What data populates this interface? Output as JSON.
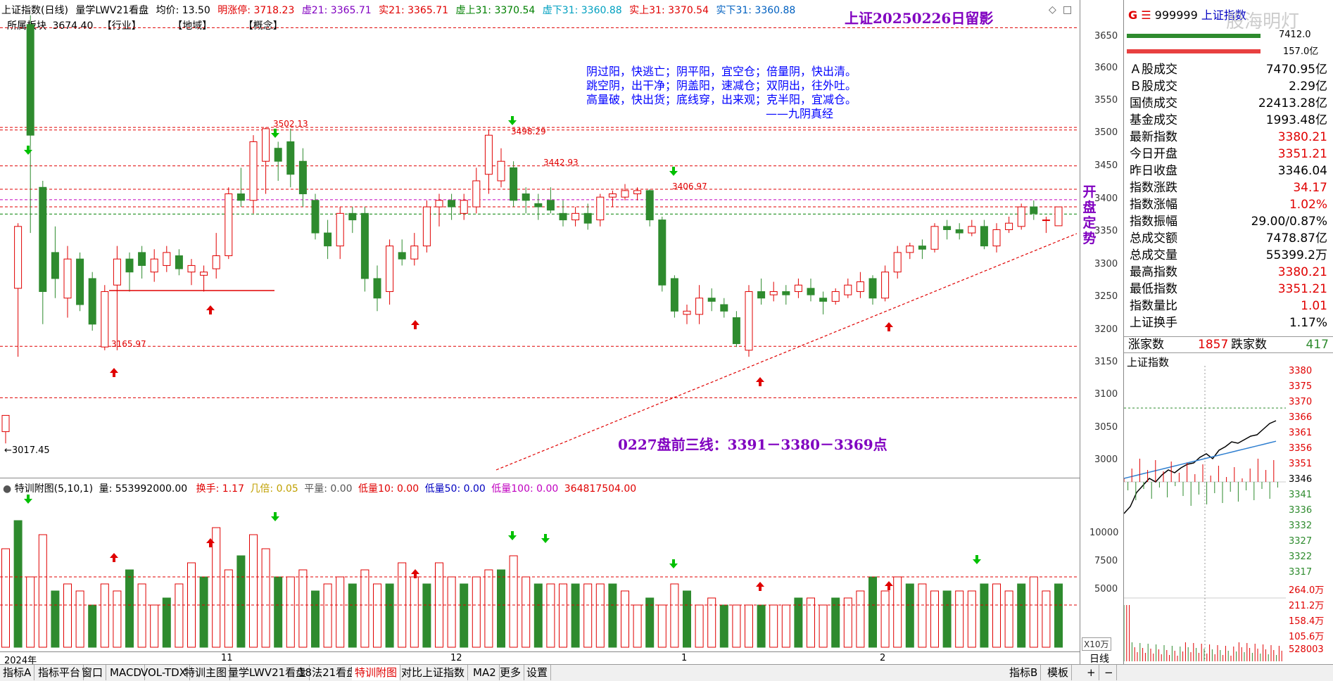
{
  "header": {
    "index_name": "上证指数(日线)",
    "indicator": "量学LWV21看盘",
    "avg_label": "均价: 13.50",
    "limit_up": "明涨停: 3718.23",
    "xu21": "虚21: 3365.71",
    "shi21": "实21: 3365.71",
    "xushang31": "虚上31: 3370.54",
    "xuxia31": "虚下31: 3360.88",
    "shishang31": "实上31: 3370.54",
    "shixia31": "实下31: 3360.88",
    "line2_a": "所属板块",
    "line2_b": "【行业】",
    "line2_c": "【地域】",
    "line2_d": "【概念】",
    "y_top_text": "3674.40"
  },
  "title_right": "上证20250226日留影",
  "poem": [
    "阴过阳，快逃亡；阴平阳，宜空仓；倍量阴，快出清。",
    "跳空阴，出干净；阴盖阳，速减仓；双阴出，往外吐。",
    "高量破，快出货；底线穿，出来观；克半阳，宜减仓。",
    "——九阴真经"
  ],
  "forecast_text": "0227盘前三线：3391－3380－3369点",
  "side_text": [
    "开",
    "盘",
    "定",
    "势"
  ],
  "price_labels": {
    "p3502": "3502.13",
    "p3498": "3498.29",
    "p3442": "3442.93",
    "p3406": "3406.97",
    "p3165": "3165.97",
    "p3017": "←3017.45"
  },
  "y_axis_main": [
    "3650",
    "3600",
    "3550",
    "3500",
    "3450",
    "3400",
    "3350",
    "3300",
    "3250",
    "3200",
    "3150",
    "3100",
    "3050",
    "3000"
  ],
  "sub_header": {
    "name": "特训附图(5,10,1)",
    "vol": "量: 553992000.00",
    "huanshou": "换手: 1.17",
    "beiji": "几倍: 0.05",
    "pingliang": "平量: 0.00",
    "diliang10": "低量10: 0.00",
    "diliang50": "低量50: 0.00",
    "diliang100": "低量100: 0.00",
    "tail": "364817504.00"
  },
  "y_axis_sub": [
    "10000",
    "7500",
    "5000"
  ],
  "x_unit": "X10万",
  "date_labels": [
    "2024年",
    "11",
    "12",
    "1",
    "2"
  ],
  "period": "日线",
  "right_panel": {
    "code": "999999",
    "name": "上证指数",
    "watermark": "股海明灯",
    "top_vals": [
      "7412.0",
      "157.0亿"
    ],
    "rows": [
      {
        "label": "Ａ股成交",
        "value": "7470.95亿",
        "color": "#000"
      },
      {
        "label": "Ｂ股成交",
        "value": "2.29亿",
        "color": "#000"
      },
      {
        "label": "国债成交",
        "value": "22413.28亿",
        "color": "#000"
      },
      {
        "label": "基金成交",
        "value": "1993.48亿",
        "color": "#000"
      },
      {
        "label": "最新指数",
        "value": "3380.21",
        "color": "#e00000"
      },
      {
        "label": "今日开盘",
        "value": "3351.21",
        "color": "#e00000"
      },
      {
        "label": "昨日收盘",
        "value": "3346.04",
        "color": "#000"
      },
      {
        "label": "指数涨跌",
        "value": "34.17",
        "color": "#e00000"
      },
      {
        "label": "指数涨幅",
        "value": "1.02%",
        "color": "#e00000"
      },
      {
        "label": "指数振幅",
        "value": "29.00/0.87%",
        "color": "#000"
      },
      {
        "label": "总成交额",
        "value": "7478.87亿",
        "color": "#000"
      },
      {
        "label": "总成交量",
        "value": "55399.2万",
        "color": "#000"
      },
      {
        "label": "最高指数",
        "value": "3380.21",
        "color": "#e00000"
      },
      {
        "label": "最低指数",
        "value": "3351.21",
        "color": "#e00000"
      },
      {
        "label": "指数量比",
        "value": "1.01",
        "color": "#e00000"
      },
      {
        "label": "上证换手",
        "value": "1.17%",
        "color": "#000"
      }
    ],
    "rise_label": "涨家数",
    "rise_val": "1857",
    "fall_label": "跌家数",
    "fall_val": "417",
    "mini_title": "上证指数",
    "mini_axis": [
      "3380",
      "3375",
      "3370",
      "3366",
      "3361",
      "3356",
      "3351",
      "3346",
      "3341",
      "3336",
      "3332",
      "3327",
      "3322",
      "3317",
      "264.0万",
      "211.2万",
      "158.4万",
      "105.6万",
      "528003"
    ]
  },
  "tabs": [
    "指标A",
    "指标平台",
    "窗口",
    "MACD",
    "VOL-TDX",
    "特训主图",
    "量学LWV21看盘",
    "18法21看盘",
    "特训附图",
    "对比上证指数",
    "MA2",
    "更多",
    "设置"
  ],
  "active_tab": "特训附图",
  "tabs_right": [
    "指标B",
    "模板"
  ],
  "tab_small": [
    "+",
    "−"
  ],
  "colors": {
    "up": "#e00000",
    "down": "#2e8b2e",
    "bg": "#ffffff"
  }
}
